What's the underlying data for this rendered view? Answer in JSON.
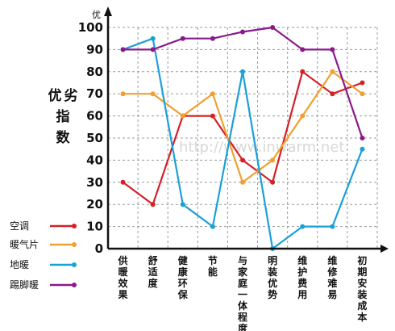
{
  "chart_data": {
    "type": "line",
    "title": "",
    "y_axis_top_label": "优",
    "ylabel": "优劣指数",
    "ylim": [
      0,
      100
    ],
    "yticks": [
      "0",
      "10",
      "20",
      "30",
      "40",
      "50",
      "60",
      "70",
      "80",
      "90",
      "100"
    ],
    "grid": true,
    "legend_position": "bottom-left",
    "categories": [
      "供暖效果",
      "舒适度",
      "健康环保",
      "节能",
      "与家庭一体程度",
      "明装优势",
      "维护费用",
      "维修难易",
      "初期安装成本"
    ],
    "series": [
      {
        "name": "空调",
        "color": "#d42027",
        "values": [
          30,
          20,
          60,
          60,
          40,
          30,
          80,
          70,
          75
        ]
      },
      {
        "name": "暖气片",
        "color": "#f0a030",
        "values": [
          70,
          70,
          60,
          70,
          30,
          40,
          60,
          80,
          70
        ]
      },
      {
        "name": "地暖",
        "color": "#1aa0d8",
        "values": [
          90,
          95,
          20,
          10,
          80,
          0,
          10,
          10,
          45
        ]
      },
      {
        "name": "踢脚暖",
        "color": "#8a1a8c",
        "values": [
          90,
          90,
          95,
          95,
          98,
          100,
          90,
          90,
          50
        ]
      }
    ],
    "watermark": "http://www.inwarm.net"
  }
}
